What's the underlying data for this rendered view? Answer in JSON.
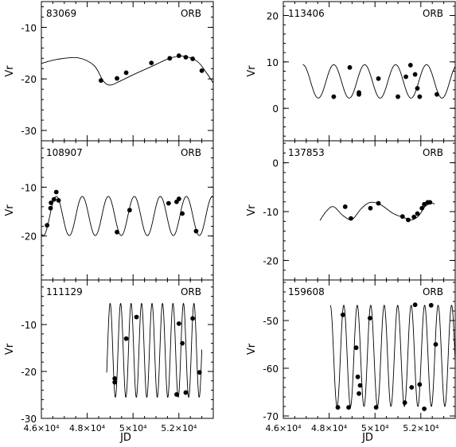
{
  "chart_data": [
    {
      "type": "scatter",
      "id": "83069",
      "label": "ORB",
      "ylabel": "Vr",
      "xlabel": "",
      "xlim": [
        46000,
        53500
      ],
      "ylim": [
        -32,
        -5
      ],
      "yticks": [
        -10,
        -20,
        -30
      ],
      "xticks": [],
      "fit_curve": {
        "x": [
          46000,
          46700,
          47600,
          48300,
          48700,
          49000,
          49400,
          50000,
          50800,
          51600,
          52200,
          52800,
          53200,
          53500
        ],
        "y": [
          -17.0,
          -16.2,
          -15.9,
          -17.4,
          -20.4,
          -21.2,
          -20.5,
          -19.2,
          -17.6,
          -16.0,
          -15.6,
          -16.6,
          -18.8,
          -20.8
        ]
      },
      "points": {
        "x": [
          48600,
          49300,
          49700,
          50800,
          51600,
          52000,
          52300,
          52600,
          53000
        ],
        "y": [
          -20.3,
          -19.9,
          -18.8,
          -16.9,
          -16.0,
          -15.5,
          -15.8,
          -16.1,
          -18.4
        ]
      }
    },
    {
      "type": "scatter",
      "id": "113406",
      "label": "ORB",
      "ylabel": "Vr",
      "xlabel": "",
      "xlim": [
        46000,
        53500
      ],
      "ylim": [
        -7,
        23
      ],
      "yticks": [
        20,
        10,
        0
      ],
      "xticks": [],
      "fit_curve": {
        "type": "sinusoid",
        "x_start": 46850,
        "x_end": 53500,
        "period": 1350,
        "phase_x": 46850,
        "mean": 5.8,
        "amplitude": 3.6
      },
      "points": {
        "x": [
          48200,
          48900,
          49300,
          49300,
          50150,
          51000,
          51350,
          51550,
          51750,
          51850,
          51950,
          52700
        ],
        "y": [
          2.5,
          8.8,
          3.4,
          3.0,
          6.4,
          2.5,
          6.8,
          9.3,
          7.3,
          4.3,
          2.5,
          3.0
        ]
      }
    },
    {
      "type": "scatter",
      "id": "108907",
      "label": "ORB",
      "ylabel": "Vr",
      "xlabel": "",
      "xlim": [
        46000,
        53500
      ],
      "ylim": [
        -29,
        -0.5
      ],
      "yticks": [
        -10,
        -20
      ],
      "xticks": [],
      "fit_curve": {
        "type": "sinusoid",
        "x_start": 46000,
        "x_end": 53500,
        "period": 1135,
        "phase_x": 46650,
        "mean": -15.9,
        "amplitude": 4.0
      },
      "points": {
        "x": [
          46250,
          46400,
          46420,
          46550,
          46650,
          46750,
          49300,
          49850,
          51550,
          51900,
          52000,
          52150,
          52750
        ],
        "y": [
          -17.8,
          -14.3,
          -13.2,
          -12.5,
          -11.0,
          -12.7,
          -19.2,
          -14.7,
          -13.3,
          -13.0,
          -12.4,
          -15.4,
          -19.0
        ]
      }
    },
    {
      "type": "scatter",
      "id": "137853",
      "label": "ORB",
      "ylabel": "Vr",
      "xlabel": "",
      "xlim": [
        46000,
        53500
      ],
      "ylim": [
        -24,
        4.5
      ],
      "yticks": [
        0,
        -10,
        -20
      ],
      "xticks": [],
      "fit_curve": {
        "x": [
          47600,
          47900,
          48200,
          48600,
          49000,
          49400,
          49800,
          50250,
          50800,
          51300,
          51600,
          51900,
          52200,
          52500,
          52600
        ],
        "y": [
          -11.8,
          -9.8,
          -9.0,
          -10.8,
          -11.6,
          -9.4,
          -8.1,
          -8.6,
          -10.4,
          -11.3,
          -11.7,
          -10.9,
          -8.9,
          -8.3,
          -8.5
        ]
      },
      "points": {
        "x": [
          48700,
          48950,
          49800,
          50150,
          51200,
          51450,
          51700,
          51850,
          52050,
          52150,
          52300,
          52400
        ],
        "y": [
          -9.0,
          -11.4,
          -9.3,
          -8.3,
          -11.0,
          -11.7,
          -11.1,
          -10.4,
          -9.3,
          -8.5,
          -8.1,
          -8.1
        ]
      }
    },
    {
      "type": "scatter",
      "id": "111129",
      "label": "ORB",
      "ylabel": "Vr",
      "xlabel": "JD",
      "xlim": [
        46000,
        53500
      ],
      "ylim": [
        -30,
        -0.5
      ],
      "yticks": [
        -10,
        -20,
        -30
      ],
      "xticks": [
        46000,
        48000,
        50000,
        52000
      ],
      "xtick_labels": [
        "4.6×10⁴",
        "4.8×10⁴",
        "5×10⁴",
        "5.2×10⁴"
      ],
      "fit_curve": {
        "type": "sinusoid",
        "x_start": 48850,
        "x_end": 53000,
        "period": 457,
        "phase_x": 49000,
        "mean": -15.5,
        "amplitude": 10.0
      },
      "points": {
        "x": [
          49200,
          49200,
          49700,
          50150,
          51900,
          52000,
          52150,
          52300,
          52600,
          52900
        ],
        "y": [
          -21.5,
          -22.3,
          -13.0,
          -8.4,
          -24.9,
          -9.8,
          -14.0,
          -24.5,
          -8.7,
          -20.2
        ]
      }
    },
    {
      "type": "scatter",
      "id": "159608",
      "label": "ORB",
      "ylabel": "Vr",
      "xlabel": "JD",
      "xlim": [
        46000,
        53500
      ],
      "ylim": [
        -70.5,
        -41.5
      ],
      "yticks": [
        -50,
        -60,
        -70
      ],
      "xticks": [
        46000,
        48000,
        50000,
        52000
      ],
      "xtick_labels": [
        "4.6×10⁴",
        "4.8×10⁴",
        "5×10⁴",
        "5.2×10⁴"
      ],
      "fit_curve": {
        "type": "sinusoid",
        "x_start": 48050,
        "x_end": 53500,
        "period": 588,
        "phase_x": 48050,
        "mean": -57.4,
        "amplitude": 10.6
      },
      "points": {
        "x": [
          48380,
          48600,
          48850,
          49180,
          49250,
          49300,
          49350,
          49780,
          50050,
          51300,
          51600,
          51750,
          51950,
          52150,
          52450,
          52650
        ],
        "y": [
          -68.2,
          -48.8,
          -68.2,
          -55.7,
          -61.8,
          -65.3,
          -63.6,
          -49.5,
          -68.2,
          -67.2,
          -64.0,
          -46.7,
          -63.4,
          -68.5,
          -46.8,
          -55.0
        ]
      }
    }
  ]
}
